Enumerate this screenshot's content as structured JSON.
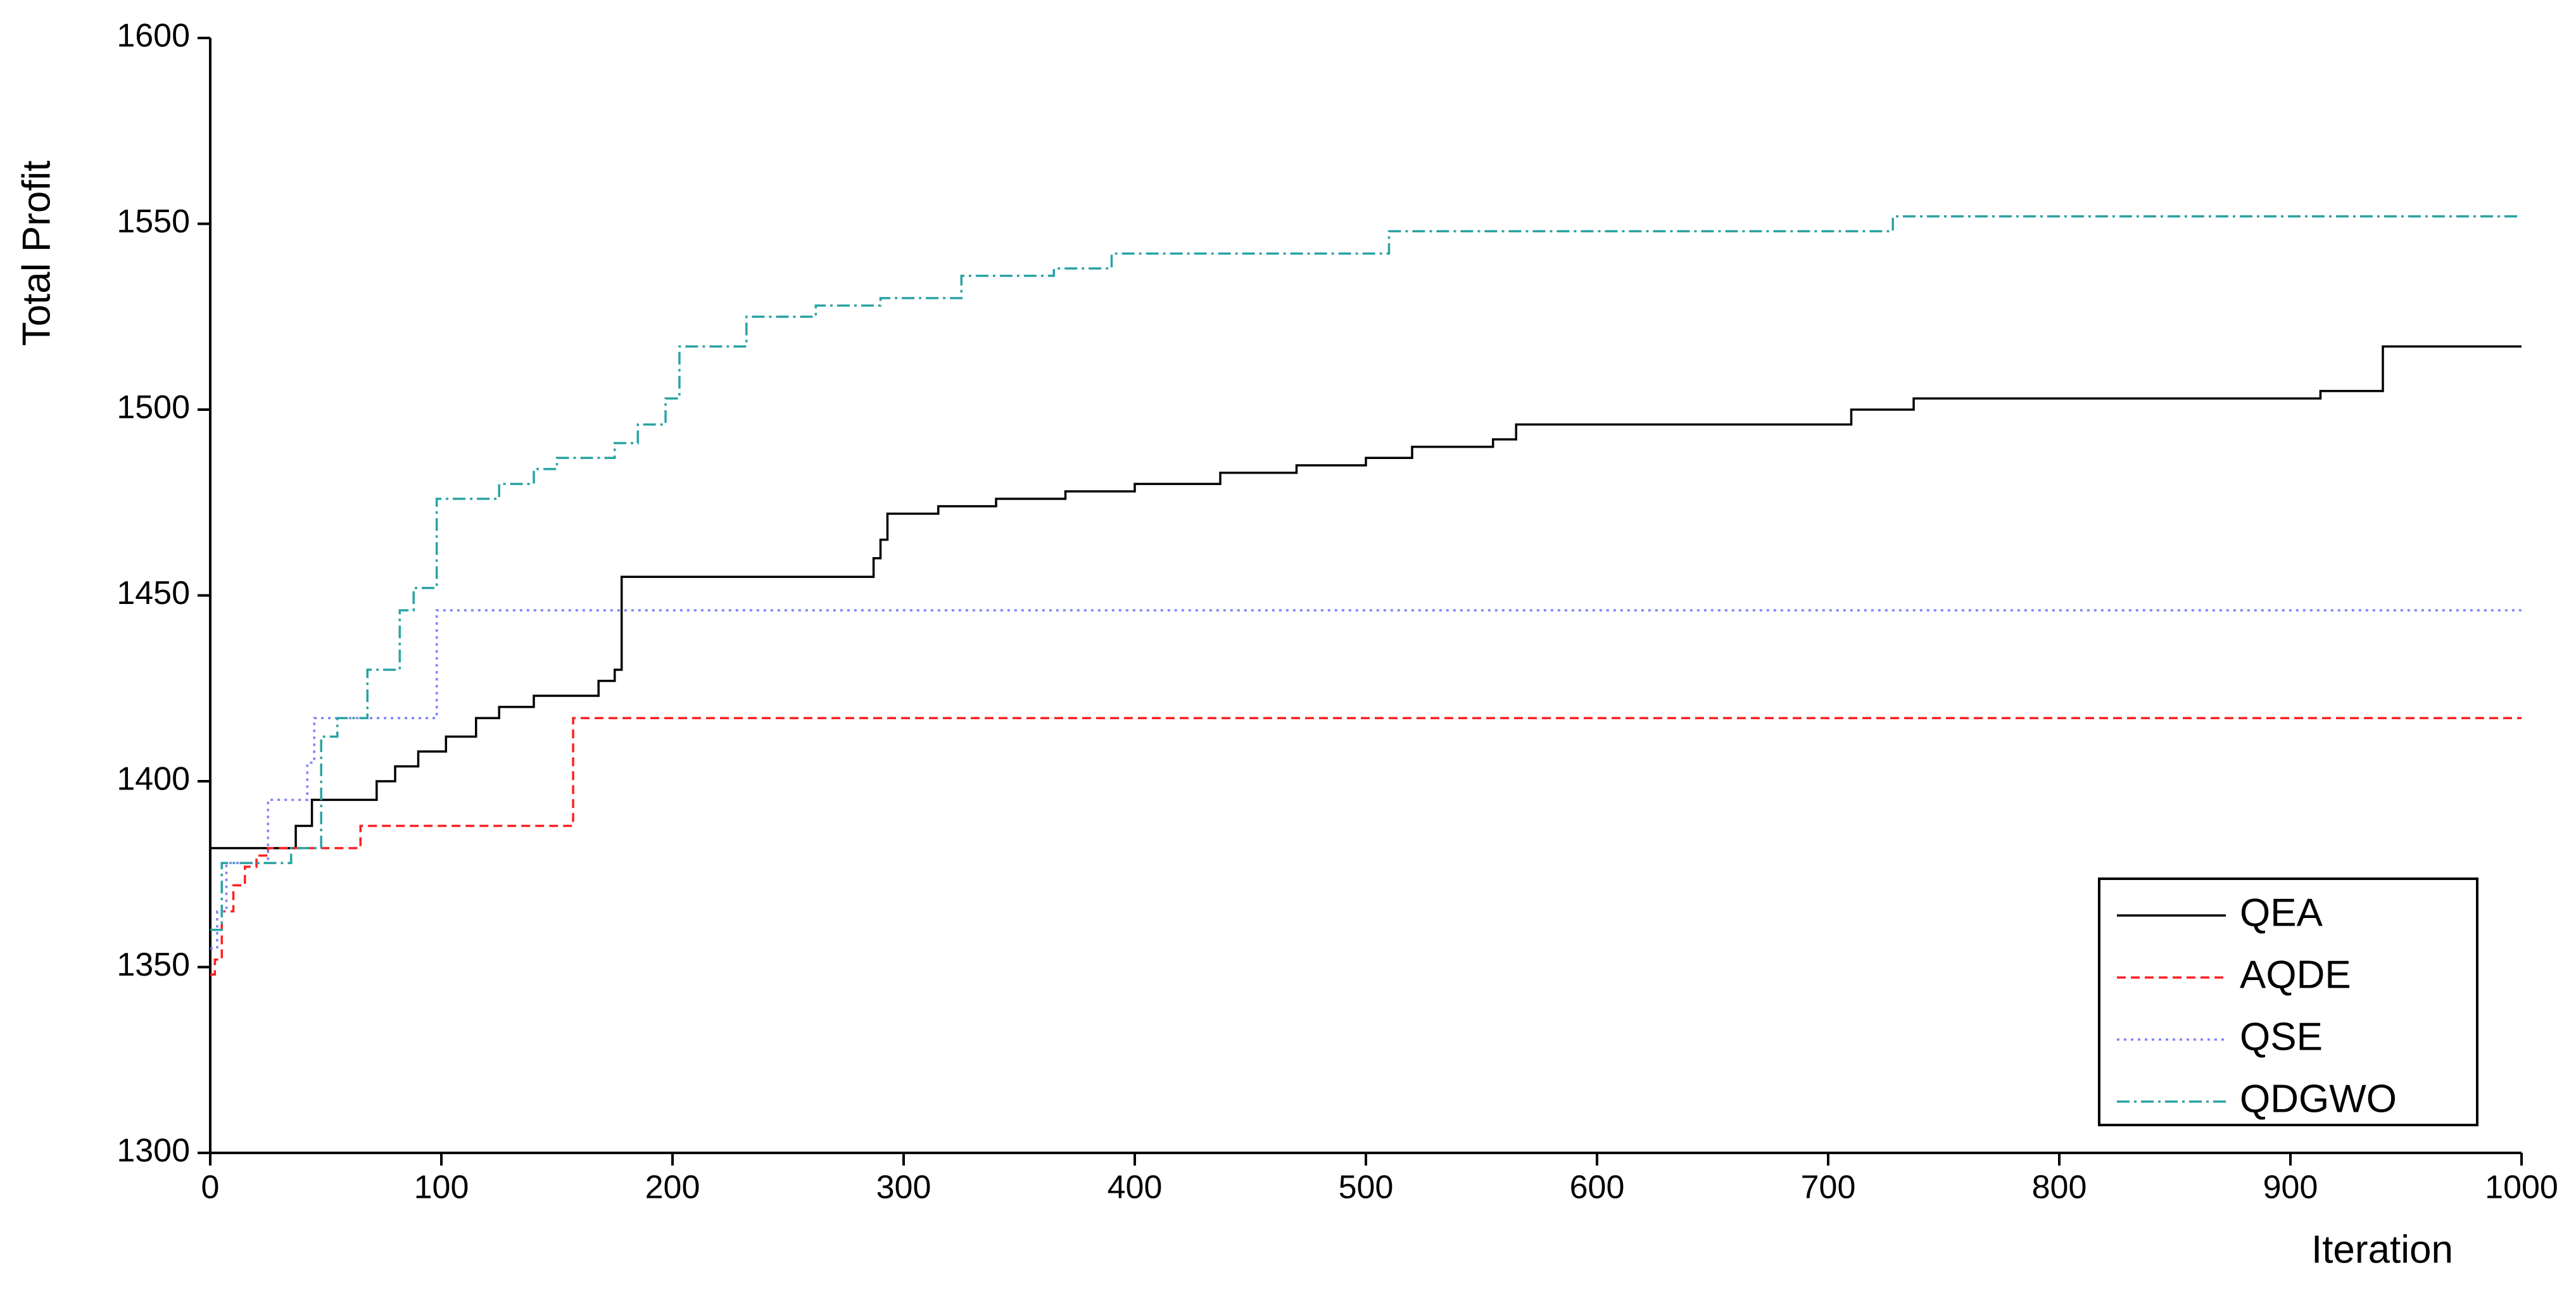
{
  "chart_data": {
    "type": "step-line",
    "x_label": "Iteration",
    "y_label": "Total Profit",
    "xlim": [
      0,
      1000
    ],
    "xticks": [
      0,
      100,
      200,
      300,
      400,
      500,
      600,
      700,
      800,
      900,
      1000
    ],
    "ylim": [
      1300,
      1600
    ],
    "yticks": [
      1300,
      1350,
      1400,
      1450,
      1500,
      1550,
      1600
    ],
    "legend": "lower right",
    "series": [
      {
        "name": "QEA",
        "color": "#000000",
        "dash": "solid",
        "x": [
          0,
          37,
          44,
          72,
          80,
          90,
          102,
          115,
          125,
          140,
          168,
          175,
          178,
          287,
          290,
          293,
          315,
          340,
          370,
          400,
          437,
          470,
          500,
          520,
          555,
          565,
          710,
          737,
          913,
          940,
          1000
        ],
        "values": [
          1382,
          1388,
          1395,
          1400,
          1404,
          1408,
          1412,
          1417,
          1420,
          1423,
          1427,
          1430,
          1455,
          1460,
          1465,
          1472,
          1474,
          1476,
          1478,
          1480,
          1483,
          1485,
          1487,
          1490,
          1492,
          1496,
          1500,
          1503,
          1505,
          1517,
          1517
        ]
      },
      {
        "name": "AQDE",
        "color": "#ff2020",
        "dash": "dashed",
        "x": [
          0,
          2,
          5,
          10,
          15,
          20,
          25,
          65,
          157,
          1000
        ],
        "values": [
          1348,
          1352,
          1365,
          1372,
          1377,
          1380,
          1382,
          1388,
          1417,
          1417
        ]
      },
      {
        "name": "QSE",
        "color": "#8080ff",
        "dash": "dotted",
        "x": [
          0,
          3,
          7,
          25,
          42,
          45,
          98,
          1000
        ],
        "values": [
          1355,
          1365,
          1378,
          1395,
          1405,
          1417,
          1446,
          1446
        ]
      },
      {
        "name": "QDGWO",
        "color": "#2aa3a3",
        "dash": "dashdot",
        "x": [
          0,
          5,
          35,
          48,
          55,
          68,
          82,
          88,
          98,
          125,
          140,
          150,
          175,
          185,
          197,
          203,
          232,
          262,
          290,
          325,
          365,
          390,
          510,
          728,
          1000
        ],
        "values": [
          1360,
          1378,
          1382,
          1412,
          1417,
          1430,
          1446,
          1452,
          1476,
          1480,
          1484,
          1487,
          1491,
          1496,
          1503,
          1517,
          1525,
          1528,
          1530,
          1536,
          1538,
          1542,
          1548,
          1552,
          1552
        ]
      }
    ]
  }
}
